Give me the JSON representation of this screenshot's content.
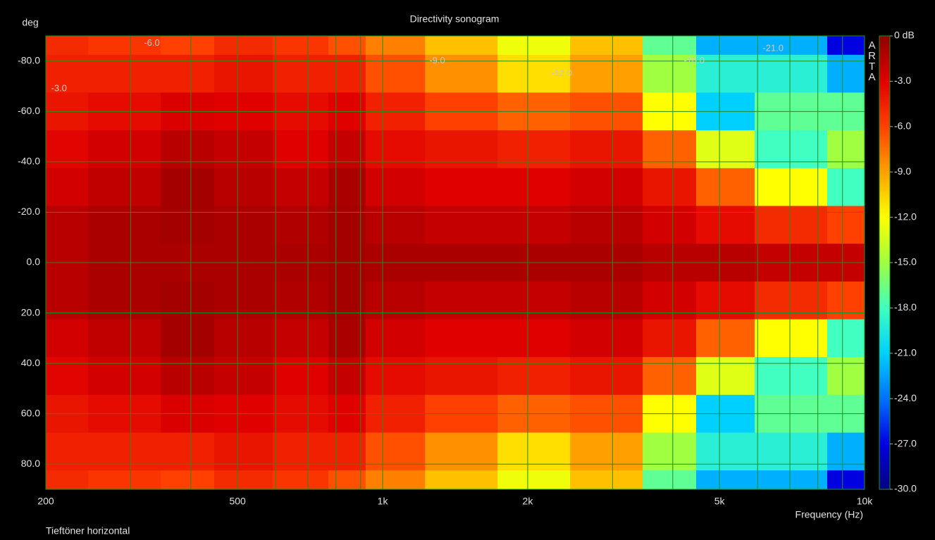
{
  "chart_data": {
    "type": "heatmap",
    "title": "Directivity sonogram",
    "y_unit": "deg",
    "x_label": "Frequency (Hz)",
    "note": "Tieftöner horizontal",
    "watermark": "ARTA",
    "x": [
      200,
      300,
      400,
      500,
      700,
      850,
      1000,
      1500,
      2000,
      3000,
      4000,
      5000,
      7000,
      10000
    ],
    "y": [
      -90,
      -75,
      -60,
      -45,
      -30,
      -15,
      0,
      15,
      30,
      45,
      60,
      75,
      90
    ],
    "z": [
      [
        -5,
        -5.5,
        -6,
        -5,
        -5.5,
        -6.5,
        -8,
        -10,
        -12.5,
        -10,
        -17,
        -22,
        -22,
        -27
      ],
      [
        -4.5,
        -4.5,
        -4.5,
        -4,
        -4.5,
        -4.5,
        -6.5,
        -8.5,
        -11,
        -9,
        -15,
        -19,
        -19,
        -22
      ],
      [
        -4,
        -3.5,
        -2.8,
        -3,
        -3.5,
        -3,
        -4.5,
        -6,
        -7,
        -6.5,
        -12,
        -21,
        -17,
        -17
      ],
      [
        -3.2,
        -2.5,
        -1.5,
        -2,
        -3,
        -2,
        -3.5,
        -4,
        -4.5,
        -4,
        -7,
        -13,
        -18,
        -15
      ],
      [
        -2.5,
        -1.8,
        -0.8,
        -1.5,
        -2,
        -1,
        -2.5,
        -3,
        -3,
        -2.5,
        -4,
        -7,
        -12,
        -18
      ],
      [
        -1.5,
        -1,
        -0.8,
        -1,
        -1.2,
        -0.8,
        -1.5,
        -2,
        -2,
        -1.5,
        -2.5,
        -3.5,
        -5,
        -6
      ],
      [
        -1.5,
        -1,
        -1,
        -1,
        -1,
        -0.8,
        -1,
        -1,
        -1,
        -1,
        -1.5,
        -1.5,
        -2,
        -2
      ],
      [
        -1.5,
        -1,
        -0.8,
        -1,
        -1.2,
        -0.8,
        -1.5,
        -2,
        -2,
        -1.5,
        -2.5,
        -3.5,
        -5,
        -6
      ],
      [
        -2.5,
        -1.8,
        -0.8,
        -1.5,
        -2,
        -1,
        -2.5,
        -3,
        -3,
        -2.5,
        -4,
        -7,
        -12,
        -18
      ],
      [
        -3.2,
        -2.5,
        -1.5,
        -2,
        -3,
        -2,
        -3.5,
        -4,
        -4.5,
        -4,
        -7,
        -13,
        -18,
        -15
      ],
      [
        -4,
        -3.5,
        -2.8,
        -3,
        -3.5,
        -3,
        -4.5,
        -6,
        -7,
        -6.5,
        -12,
        -21,
        -17,
        -17
      ],
      [
        -4.5,
        -4.5,
        -4.5,
        -4,
        -4.5,
        -4.5,
        -6.5,
        -8.5,
        -11,
        -9,
        -15,
        -19,
        -19,
        -22
      ],
      [
        -5,
        -5.5,
        -6,
        -5,
        -5.5,
        -6.5,
        -8,
        -10,
        -12.5,
        -10,
        -17,
        -22,
        -22,
        -27
      ]
    ],
    "xlim": [
      200,
      10000
    ],
    "xscale": "log",
    "xticks": [
      200,
      500,
      {
        "value": 1000,
        "label": "1k"
      },
      {
        "value": 2000,
        "label": "2k"
      },
      {
        "value": 5000,
        "label": "5k"
      },
      {
        "value": 10000,
        "label": "10k"
      }
    ],
    "xgrid": [
      300,
      400,
      600,
      700,
      800,
      900,
      3000,
      4000,
      6000,
      7000,
      8000,
      9000
    ],
    "ylim": [
      -90,
      90
    ],
    "yticks": [
      {
        "value": -80,
        "label": "-80.0"
      },
      {
        "value": -60,
        "label": "-60.0"
      },
      {
        "value": -40,
        "label": "-40.0"
      },
      {
        "value": -20,
        "label": "-20.0"
      },
      {
        "value": 0,
        "label": "0.0"
      },
      {
        "value": 20,
        "label": "20.0"
      },
      {
        "value": 40,
        "label": "40.0"
      },
      {
        "value": 60,
        "label": "60.0"
      },
      {
        "value": 80,
        "label": "80.0"
      }
    ],
    "clim": [
      -30,
      0
    ],
    "cticks": [
      {
        "value": 0,
        "label": "0 dB"
      },
      {
        "value": -3,
        "label": "-3.0"
      },
      {
        "value": -6,
        "label": "-6.0"
      },
      {
        "value": -9,
        "label": "-9.0"
      },
      {
        "value": -12,
        "label": "-12.0"
      },
      {
        "value": -15,
        "label": "-15.0"
      },
      {
        "value": -18,
        "label": "-18.0"
      },
      {
        "value": -21,
        "label": "-21.0"
      },
      {
        "value": -24,
        "label": "-24.0"
      },
      {
        "value": -27,
        "label": "-27.0"
      },
      {
        "value": -30,
        "label": "-30.0"
      }
    ],
    "colormap": [
      "#000080",
      "#0000e0",
      "#0070ff",
      "#00d0ff",
      "#40ffc0",
      "#a0ff40",
      "#ffff00",
      "#ffa000",
      "#ff4000",
      "#e00000",
      "#900000"
    ],
    "grid_color": "#1f8f1f",
    "annotations": [
      {
        "text": "-3.0",
        "x": 213,
        "y": -69
      },
      {
        "text": "-6.0",
        "x": 332,
        "y": -87
      },
      {
        "text": "-9.0",
        "x": 1298,
        "y": -80
      },
      {
        "text": "-12.0",
        "x": 2352,
        "y": -75
      },
      {
        "text": "-18.0",
        "x": 4430,
        "y": -80
      },
      {
        "text": "-21.0",
        "x": 6460,
        "y": -85
      }
    ]
  }
}
